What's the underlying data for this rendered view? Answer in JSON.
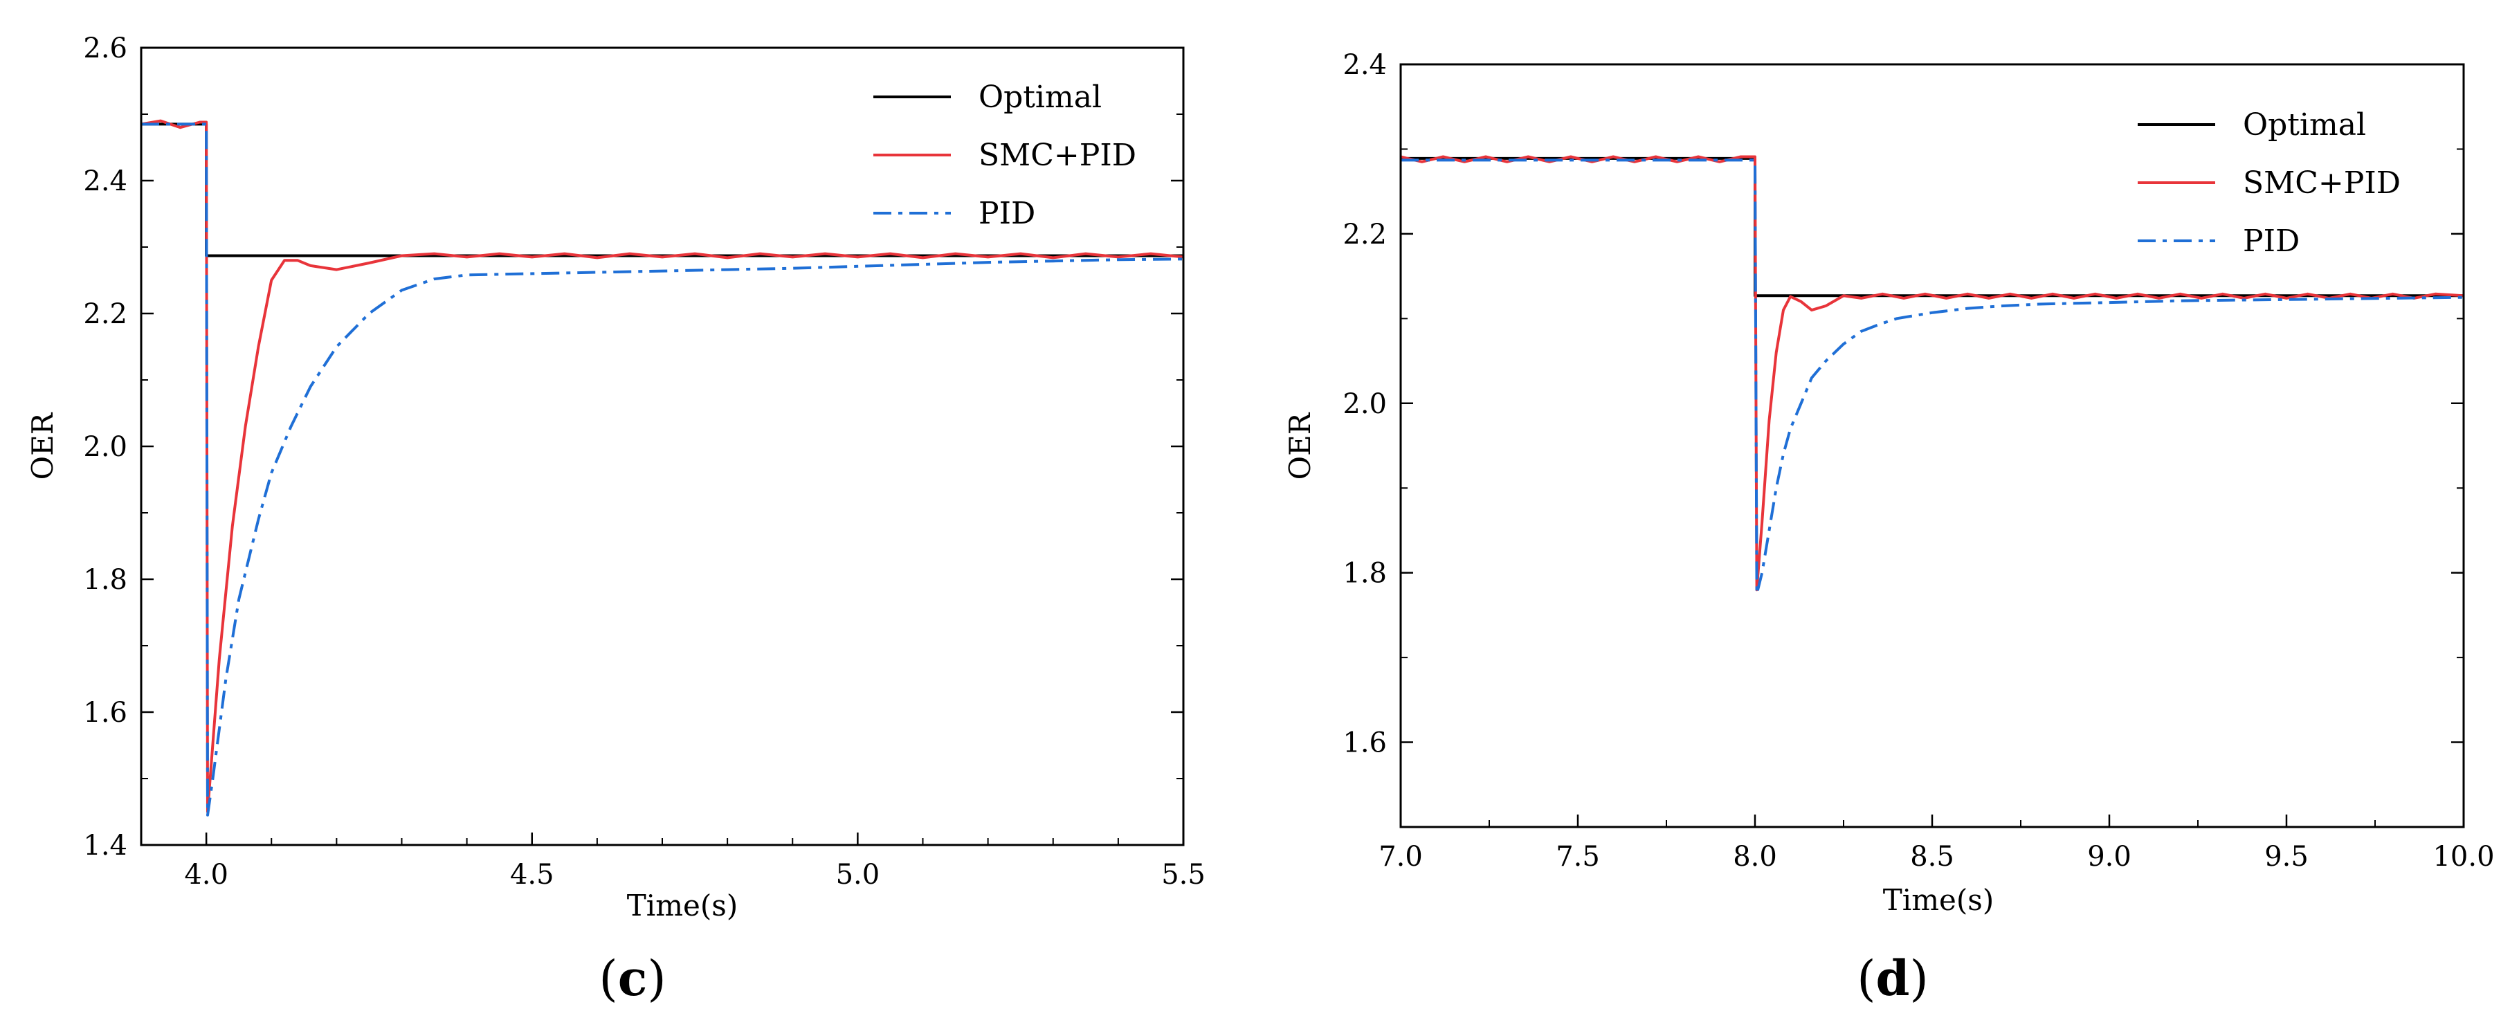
{
  "chart_data": [
    {
      "type": "line",
      "panel_label": "c",
      "xlabel": "Time(s)",
      "ylabel": "OER",
      "xlim": [
        3.9,
        5.5
      ],
      "ylim": [
        1.4,
        2.6
      ],
      "xticks": [
        4.0,
        4.5,
        5.0,
        5.5
      ],
      "xtick_labels": [
        "4.0",
        "4.5",
        "5.0",
        "5.5"
      ],
      "yticks": [
        1.4,
        1.6,
        1.8,
        2.0,
        2.2,
        2.4,
        2.6
      ],
      "ytick_labels": [
        "1.4",
        "1.6",
        "1.8",
        "2.0",
        "2.2",
        "2.4",
        "2.6"
      ],
      "legend_position": "top-right",
      "series": [
        {
          "name": "Optimal",
          "color": "#000000",
          "style": "solid",
          "x": [
            3.9,
            4.0,
            4.0,
            5.5
          ],
          "y": [
            2.485,
            2.485,
            2.287,
            2.287
          ]
        },
        {
          "name": "SMC+PID",
          "color": "#e8343a",
          "style": "solid",
          "x": [
            3.9,
            3.93,
            3.96,
            3.99,
            4.0,
            4.002,
            4.02,
            4.04,
            4.06,
            4.08,
            4.1,
            4.12,
            4.14,
            4.16,
            4.2,
            4.25,
            4.3,
            4.35,
            4.4,
            4.45,
            4.5,
            4.55,
            4.6,
            4.65,
            4.7,
            4.75,
            4.8,
            4.85,
            4.9,
            4.95,
            5.0,
            5.05,
            5.1,
            5.15,
            5.2,
            5.25,
            5.3,
            5.35,
            5.4,
            5.45,
            5.5
          ],
          "y": [
            2.485,
            2.49,
            2.48,
            2.488,
            2.488,
            1.45,
            1.68,
            1.88,
            2.03,
            2.15,
            2.25,
            2.28,
            2.28,
            2.272,
            2.266,
            2.276,
            2.287,
            2.29,
            2.285,
            2.29,
            2.285,
            2.29,
            2.284,
            2.29,
            2.285,
            2.29,
            2.284,
            2.29,
            2.285,
            2.29,
            2.285,
            2.29,
            2.284,
            2.29,
            2.285,
            2.29,
            2.284,
            2.29,
            2.285,
            2.29,
            2.285
          ]
        },
        {
          "name": "PID",
          "color": "#1f6fd6",
          "style": "dashdot",
          "x": [
            3.9,
            3.95,
            4.0,
            4.002,
            4.01,
            4.03,
            4.05,
            4.08,
            4.1,
            4.13,
            4.16,
            4.2,
            4.25,
            4.3,
            4.35,
            4.4,
            4.5,
            4.6,
            4.7,
            4.8,
            4.9,
            5.0,
            5.1,
            5.2,
            5.3,
            5.4,
            5.5
          ],
          "y": [
            2.485,
            2.485,
            2.485,
            1.445,
            1.5,
            1.65,
            1.77,
            1.89,
            1.96,
            2.03,
            2.09,
            2.15,
            2.2,
            2.235,
            2.252,
            2.258,
            2.26,
            2.262,
            2.264,
            2.266,
            2.268,
            2.271,
            2.274,
            2.277,
            2.279,
            2.281,
            2.282
          ]
        }
      ]
    },
    {
      "type": "line",
      "panel_label": "d",
      "xlabel": "Time(s)",
      "ylabel": "OER",
      "xlim": [
        7.0,
        10.0
      ],
      "ylim": [
        1.5,
        2.4
      ],
      "xticks": [
        7.0,
        7.5,
        8.0,
        8.5,
        9.0,
        9.5,
        10.0
      ],
      "xtick_labels": [
        "7.0",
        "7.5",
        "8.0",
        "8.5",
        "9.0",
        "9.5",
        "10.0"
      ],
      "yticks": [
        1.6,
        1.8,
        2.0,
        2.2,
        2.4
      ],
      "ytick_labels": [
        "1.6",
        "1.8",
        "2.0",
        "2.2",
        "2.4"
      ],
      "legend_position": "top-right",
      "series": [
        {
          "name": "Optimal",
          "color": "#000000",
          "style": "solid",
          "x": [
            7.0,
            8.0,
            8.0,
            10.0
          ],
          "y": [
            2.289,
            2.289,
            2.127,
            2.127
          ]
        },
        {
          "name": "SMC+PID",
          "color": "#e8343a",
          "style": "solid",
          "x": [
            7.0,
            7.06,
            7.12,
            7.18,
            7.24,
            7.3,
            7.36,
            7.42,
            7.48,
            7.54,
            7.6,
            7.66,
            7.72,
            7.78,
            7.84,
            7.9,
            7.96,
            8.0,
            8.005,
            8.02,
            8.04,
            8.06,
            8.08,
            8.1,
            8.13,
            8.16,
            8.2,
            8.25,
            8.3,
            8.36,
            8.42,
            8.48,
            8.54,
            8.6,
            8.66,
            8.72,
            8.78,
            8.84,
            8.9,
            8.96,
            9.02,
            9.08,
            9.14,
            9.2,
            9.26,
            9.32,
            9.38,
            9.44,
            9.5,
            9.56,
            9.62,
            9.68,
            9.74,
            9.8,
            9.86,
            9.92,
            10.0
          ],
          "y": [
            2.291,
            2.285,
            2.291,
            2.285,
            2.291,
            2.285,
            2.291,
            2.285,
            2.291,
            2.285,
            2.291,
            2.285,
            2.291,
            2.285,
            2.291,
            2.285,
            2.291,
            2.291,
            1.78,
            1.86,
            1.98,
            2.06,
            2.11,
            2.126,
            2.12,
            2.11,
            2.115,
            2.127,
            2.124,
            2.129,
            2.124,
            2.129,
            2.124,
            2.129,
            2.124,
            2.129,
            2.124,
            2.129,
            2.124,
            2.129,
            2.124,
            2.129,
            2.124,
            2.129,
            2.124,
            2.129,
            2.124,
            2.129,
            2.124,
            2.129,
            2.124,
            2.129,
            2.124,
            2.129,
            2.124,
            2.129,
            2.127
          ]
        },
        {
          "name": "PID",
          "color": "#1f6fd6",
          "style": "dashdot",
          "x": [
            7.0,
            7.5,
            8.0,
            8.005,
            8.02,
            8.04,
            8.06,
            8.08,
            8.1,
            8.13,
            8.16,
            8.2,
            8.25,
            8.3,
            8.35,
            8.4,
            8.5,
            8.6,
            8.7,
            8.8,
            8.9,
            9.0,
            9.2,
            9.4,
            9.6,
            9.8,
            10.0
          ],
          "y": [
            2.287,
            2.287,
            2.287,
            1.775,
            1.8,
            1.85,
            1.9,
            1.94,
            1.97,
            2.0,
            2.03,
            2.05,
            2.07,
            2.085,
            2.093,
            2.1,
            2.107,
            2.112,
            2.115,
            2.117,
            2.118,
            2.119,
            2.121,
            2.122,
            2.123,
            2.124,
            2.125
          ]
        }
      ]
    }
  ]
}
